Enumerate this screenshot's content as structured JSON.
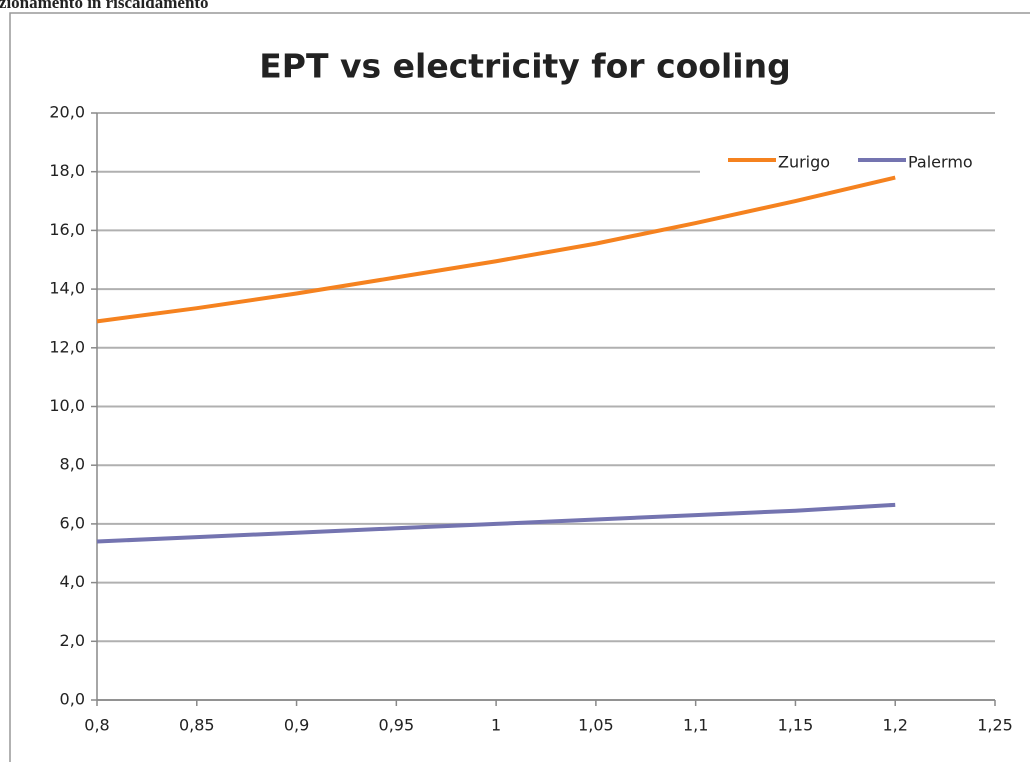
{
  "header": {
    "text": "unzionamento in riscaldamento"
  },
  "chart_data": {
    "type": "line",
    "title": "EPT vs electricity for cooling",
    "x": [
      0.8,
      0.85,
      0.9,
      0.95,
      1.0,
      1.05,
      1.1,
      1.15,
      1.2
    ],
    "series": [
      {
        "name": "Zurigo",
        "color": "#f5821f",
        "values": [
          12.9,
          13.35,
          13.85,
          14.4,
          14.95,
          15.55,
          16.25,
          17.0,
          17.8
        ]
      },
      {
        "name": "Palermo",
        "color": "#7474b0",
        "values": [
          5.4,
          5.55,
          5.7,
          5.85,
          6.0,
          6.15,
          6.3,
          6.45,
          6.65
        ]
      }
    ],
    "xlim": [
      0.8,
      1.25
    ],
    "xticks": [
      {
        "value": 0.8,
        "label": "0,8"
      },
      {
        "value": 0.85,
        "label": "0,85"
      },
      {
        "value": 0.9,
        "label": "0,9"
      },
      {
        "value": 0.95,
        "label": "0,95"
      },
      1,
      {
        "value": 1.05,
        "label": "1,05"
      },
      {
        "value": 1.1,
        "label": "1,1"
      },
      {
        "value": 1.15,
        "label": "1,15"
      },
      {
        "value": 1.2,
        "label": "1,2"
      },
      {
        "value": 1.25,
        "label": "1,25"
      }
    ],
    "ylim": [
      0,
      20
    ],
    "yticks": [
      {
        "value": 0,
        "label": "0,0"
      },
      {
        "value": 2,
        "label": "2,0"
      },
      {
        "value": 4,
        "label": "4,0"
      },
      {
        "value": 6,
        "label": "6,0"
      },
      {
        "value": 8,
        "label": "8,0"
      },
      {
        "value": 10,
        "label": "10,0"
      },
      {
        "value": 12,
        "label": "12,0"
      },
      {
        "value": 14,
        "label": "14,0"
      },
      {
        "value": 16,
        "label": "16,0"
      },
      {
        "value": 18,
        "label": "18,0"
      },
      {
        "value": 20,
        "label": "20,0"
      }
    ],
    "grid": true,
    "legend": "top-right"
  }
}
